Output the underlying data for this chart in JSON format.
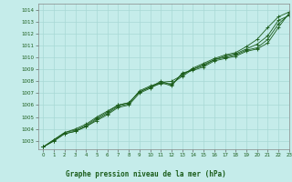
{
  "xlabel": "Graphe pression niveau de la mer (hPa)",
  "background_color": "#c5ecea",
  "plot_bg_color": "#c5ecea",
  "grid_color": "#a8d8d5",
  "line_color": "#1a5c1a",
  "xlim": [
    -0.5,
    23
  ],
  "ylim": [
    1002.3,
    1014.5
  ],
  "yticks": [
    1003,
    1004,
    1005,
    1006,
    1007,
    1008,
    1009,
    1010,
    1011,
    1012,
    1013,
    1014
  ],
  "xticks": [
    0,
    1,
    2,
    3,
    4,
    5,
    6,
    7,
    8,
    9,
    10,
    11,
    12,
    13,
    14,
    15,
    16,
    17,
    18,
    19,
    20,
    21,
    22,
    23
  ],
  "series": [
    [
      1002.5,
      1003.0,
      1003.6,
      1003.8,
      1004.2,
      1004.8,
      1005.3,
      1005.9,
      1006.1,
      1007.2,
      1007.6,
      1007.9,
      1008.0,
      1008.5,
      1009.1,
      1009.5,
      1009.9,
      1010.2,
      1010.4,
      1010.9,
      1011.5,
      1012.5,
      1013.4,
      1013.8
    ],
    [
      1002.5,
      1003.1,
      1003.7,
      1004.0,
      1004.4,
      1005.0,
      1005.5,
      1006.0,
      1006.2,
      1007.1,
      1007.5,
      1007.8,
      1007.8,
      1008.4,
      1009.0,
      1009.4,
      1009.8,
      1010.1,
      1010.3,
      1010.7,
      1011.1,
      1011.8,
      1013.1,
      1013.5
    ],
    [
      1002.5,
      1003.1,
      1003.7,
      1003.9,
      1004.3,
      1004.9,
      1005.4,
      1006.0,
      1006.2,
      1007.1,
      1007.5,
      1008.0,
      1007.7,
      1008.6,
      1009.0,
      1009.3,
      1009.8,
      1010.0,
      1010.2,
      1010.6,
      1010.8,
      1011.5,
      1012.8,
      1013.6
    ],
    [
      1002.5,
      1003.0,
      1003.6,
      1003.8,
      1004.2,
      1004.7,
      1005.2,
      1005.8,
      1006.0,
      1007.0,
      1007.4,
      1007.9,
      1007.6,
      1008.7,
      1008.9,
      1009.2,
      1009.7,
      1009.9,
      1010.1,
      1010.5,
      1010.7,
      1011.2,
      1012.5,
      1013.7
    ]
  ]
}
